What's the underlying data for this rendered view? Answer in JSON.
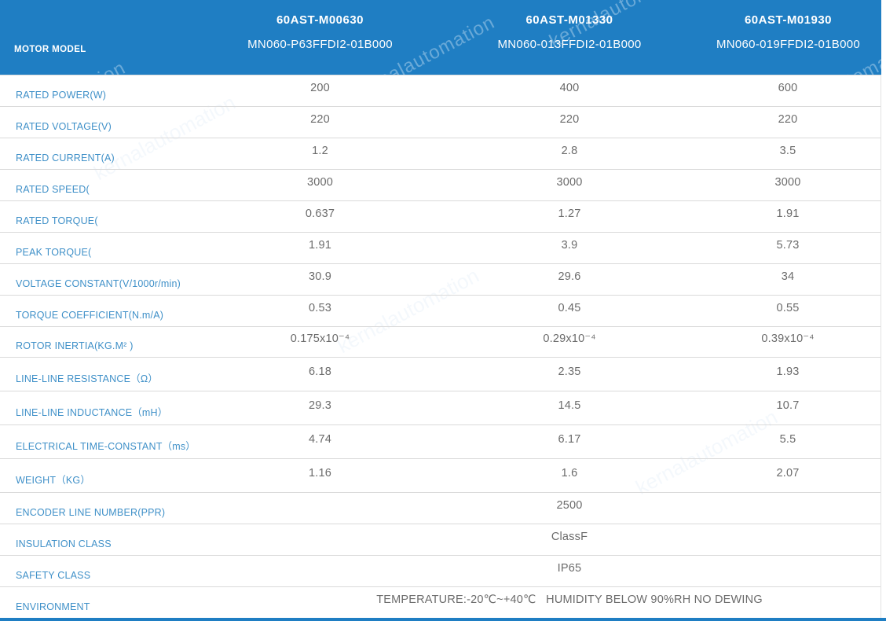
{
  "watermark": {
    "text": "kernalautomation"
  },
  "colors": {
    "header_bg": "#1f7ec3",
    "label_text": "#3f90c8",
    "value_text": "#6b6b6b",
    "row_border": "#dadada",
    "header_text": "#ffffff"
  },
  "header": {
    "row_label": "MOTOR MODEL",
    "columns": [
      {
        "model": "60AST-M00630",
        "part_number": "MN060-P63FFDI2-01B000"
      },
      {
        "model": "60AST-M01330",
        "part_number": "MN060-013FFDI2-01B000"
      },
      {
        "model": "60AST-M01930",
        "part_number": "MN060-019FFDI2-01B000"
      }
    ]
  },
  "rows": [
    {
      "label": "RATED POWER(W)",
      "values": [
        "200",
        "400",
        "600"
      ]
    },
    {
      "label": "RATED VOLTAGE(V)",
      "values": [
        "220",
        "220",
        "220"
      ]
    },
    {
      "label": "RATED CURRENT(A)",
      "values": [
        "1.2",
        "2.8",
        "3.5"
      ]
    },
    {
      "label": "RATED SPEED(",
      "values": [
        "3000",
        "3000",
        "3000"
      ]
    },
    {
      "label": "RATED TORQUE(",
      "values": [
        "0.637",
        "1.27",
        "1.91"
      ]
    },
    {
      "label": "PEAK TORQUE(",
      "values": [
        "1.91",
        "3.9",
        "5.73"
      ]
    },
    {
      "label": "VOLTAGE CONSTANT(V/1000r/min)",
      "values": [
        "30.9",
        "29.6",
        "34"
      ]
    },
    {
      "label": "TORQUE COEFFICIENT(N.m/A)",
      "values": [
        "0.53",
        "0.45",
        "0.55"
      ]
    },
    {
      "label": "ROTOR INERTIA(KG.M² )",
      "values": [
        "0.175x10⁻⁴",
        "0.29x10⁻⁴",
        "0.39x10⁻⁴"
      ]
    },
    {
      "label": "LINE-LINE RESISTANCE（Ω）",
      "values": [
        "6.18",
        "2.35",
        "1.93"
      ]
    },
    {
      "label": "LINE-LINE INDUCTANCE（mH）",
      "values": [
        "29.3",
        "14.5",
        "10.7"
      ]
    },
    {
      "label": "ELECTRICAL TIME-CONSTANT（ms）",
      "values": [
        "4.74",
        "6.17",
        "5.5"
      ]
    },
    {
      "label": "WEIGHT（KG）",
      "values": [
        "1.16",
        "1.6",
        "2.07"
      ]
    },
    {
      "label": "ENCODER LINE NUMBER(PPR)",
      "span_value": "2500"
    },
    {
      "label": "INSULATION CLASS",
      "span_value": "ClassF"
    },
    {
      "label": "SAFETY CLASS",
      "span_value": "IP65"
    },
    {
      "label": "ENVIRONMENT",
      "span_value": "TEMPERATURE:-20℃~+40℃   HUMIDITY BELOW 90%RH NO DEWING"
    }
  ]
}
